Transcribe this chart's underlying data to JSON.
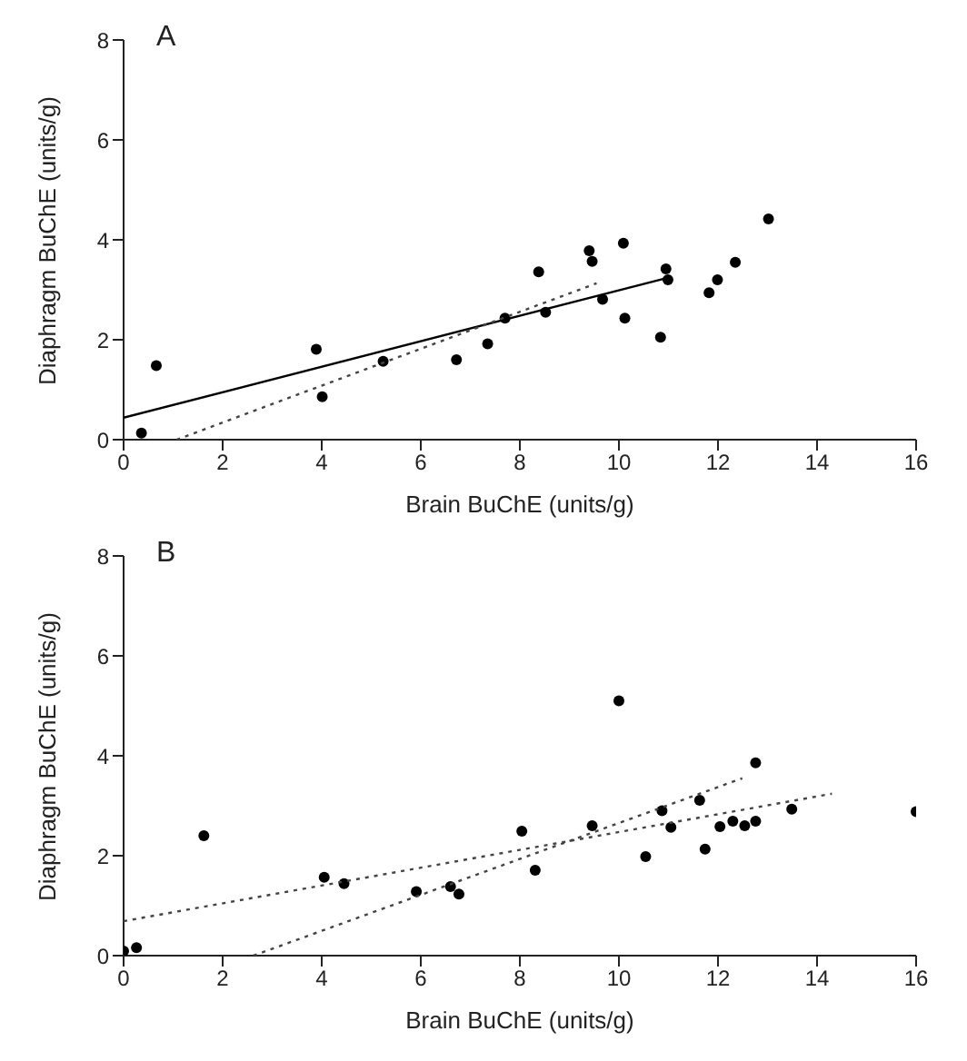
{
  "chart_data": [
    {
      "type": "scatter",
      "title": "A",
      "xlabel": "Brain BuChE (units/g)",
      "ylabel": "Diaphragm BuChE (units/g)",
      "xlim": [
        0,
        16
      ],
      "ylim": [
        0,
        8
      ],
      "xticks": [
        0,
        2,
        4,
        6,
        8,
        10,
        12,
        14,
        16
      ],
      "yticks": [
        0,
        2,
        4,
        6,
        8
      ],
      "marker": "circle",
      "series": [
        {
          "type": "scatter",
          "color": "#000000",
          "x": [
            0.36,
            0.66,
            3.89,
            4.01,
            5.24,
            6.72,
            7.35,
            7.7,
            8.38,
            8.52,
            9.4,
            9.46,
            9.67,
            10.09,
            10.12,
            10.84,
            10.95,
            10.99,
            11.82,
            11.99,
            12.35,
            13.02
          ],
          "values": [
            0.13,
            1.48,
            1.81,
            0.86,
            1.57,
            1.6,
            1.92,
            2.43,
            3.36,
            2.55,
            3.78,
            3.57,
            2.81,
            3.93,
            2.43,
            2.05,
            3.42,
            3.2,
            2.94,
            3.2,
            3.55,
            4.42
          ]
        },
        {
          "type": "line",
          "color": "#000000",
          "line_style": "solid",
          "marker": "none",
          "x": [
            0,
            10.98
          ],
          "values": [
            0.44,
            3.24
          ]
        },
        {
          "type": "line",
          "color": "#444444",
          "line_style": "dotted",
          "marker": "none",
          "x": [
            1.07,
            9.55
          ],
          "values": [
            0,
            3.13
          ]
        }
      ]
    },
    {
      "type": "scatter",
      "title": "B",
      "xlabel": "Brain BuChE (units/g)",
      "ylabel": "Diaphragm BuChE (units/g)",
      "xlim": [
        0,
        16
      ],
      "ylim": [
        0,
        8
      ],
      "xticks": [
        0,
        2,
        4,
        6,
        8,
        10,
        12,
        14,
        16
      ],
      "yticks": [
        0,
        2,
        4,
        6,
        8
      ],
      "marker": "circle",
      "series": [
        {
          "type": "scatter",
          "color": "#000000",
          "x": [
            0,
            0.26,
            1.62,
            4.05,
            4.45,
            5.91,
            6.6,
            6.77,
            8.04,
            8.31,
            9.46,
            10.0,
            10.54,
            10.87,
            11.05,
            11.63,
            11.74,
            12.04,
            12.3,
            12.54,
            12.76,
            12.76,
            13.49,
            16.0
          ],
          "values": [
            0.09,
            0.16,
            2.4,
            1.57,
            1.44,
            1.28,
            1.38,
            1.23,
            2.49,
            1.71,
            2.6,
            5.1,
            1.98,
            2.9,
            2.57,
            3.11,
            2.13,
            2.58,
            2.69,
            2.6,
            2.69,
            3.86,
            2.93,
            2.88
          ]
        },
        {
          "type": "line",
          "color": "#444444",
          "line_style": "dotted",
          "marker": "none",
          "x": [
            0,
            14.3
          ],
          "values": [
            0.69,
            3.24
          ]
        },
        {
          "type": "line",
          "color": "#444444",
          "line_style": "dotted",
          "marker": "none",
          "x": [
            2.62,
            12.49
          ],
          "values": [
            0,
            3.55
          ]
        }
      ]
    }
  ]
}
